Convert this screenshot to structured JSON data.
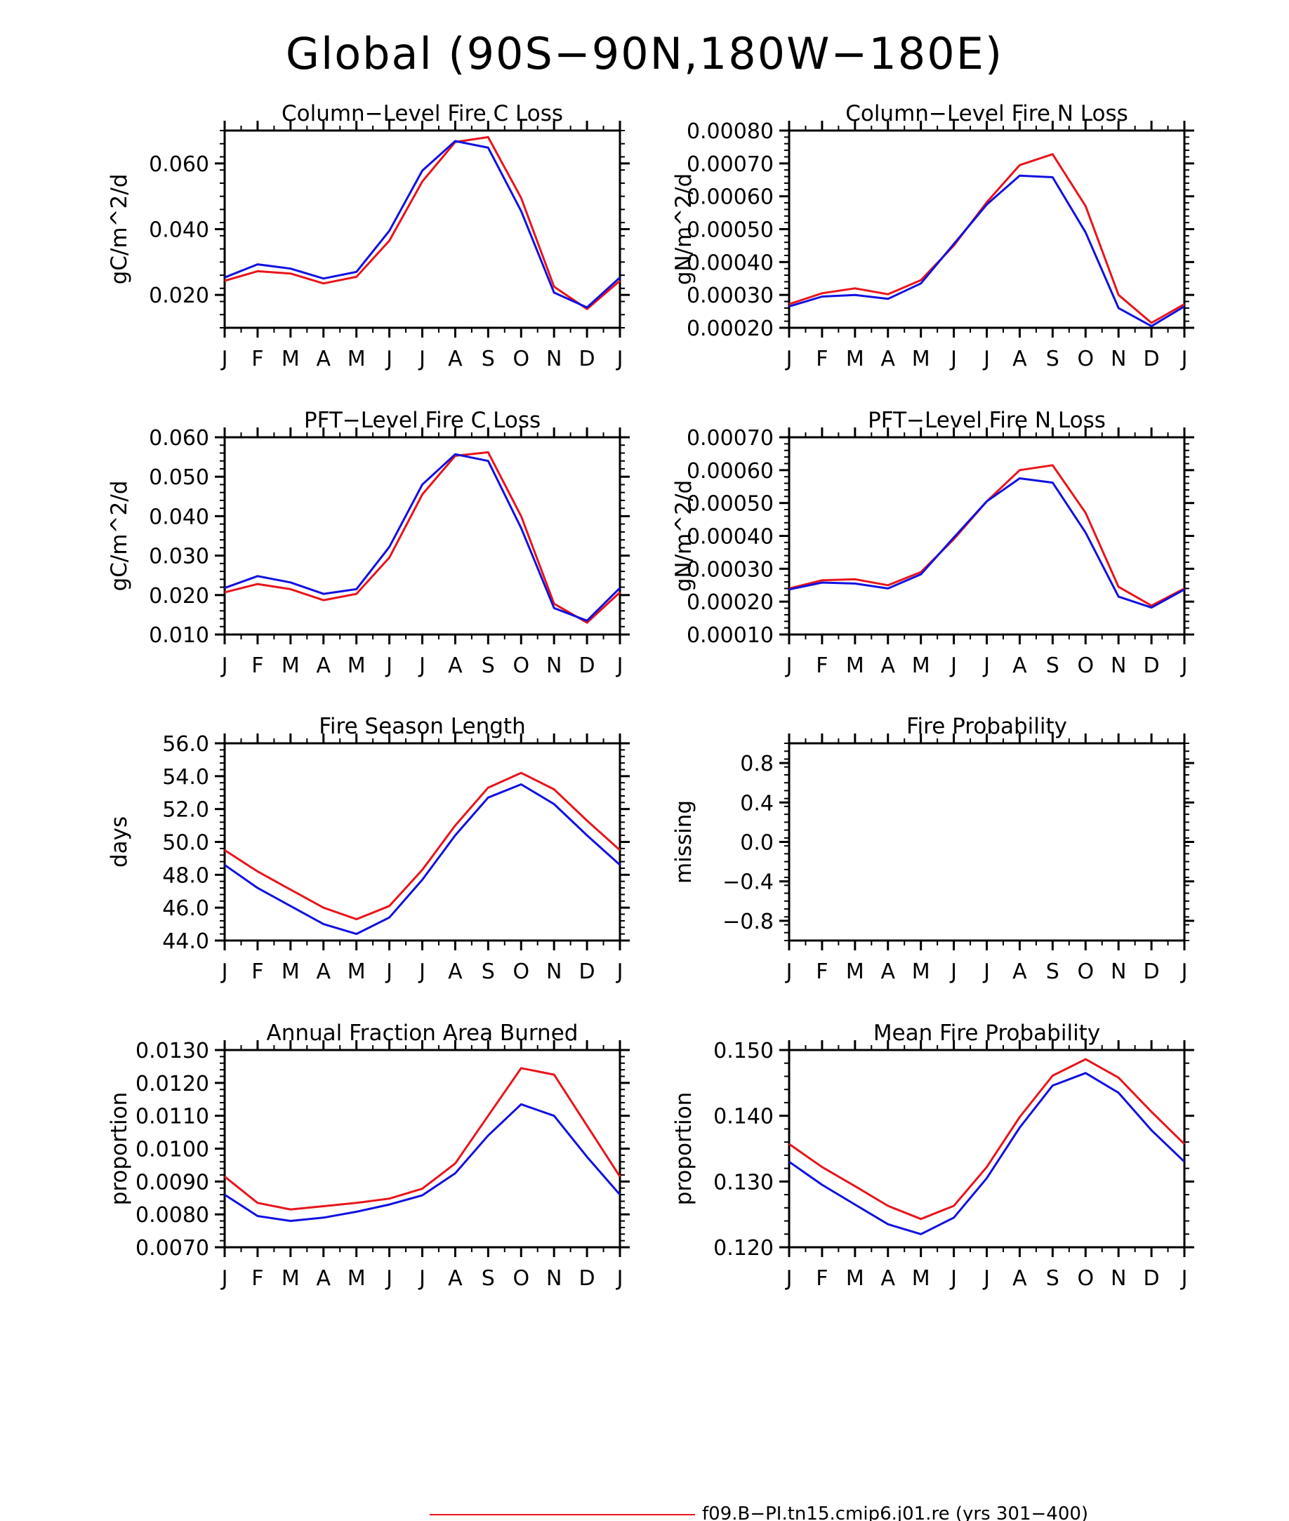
{
  "figure": {
    "title": "Global (90S−90N,180W−180E)",
    "months": [
      "J",
      "F",
      "M",
      "A",
      "M",
      "J",
      "J",
      "A",
      "S",
      "O",
      "N",
      "D",
      "J"
    ]
  },
  "legend": {
    "entries": [
      {
        "label": "f09.B−PI.tn15.cmip6.j01.re (yrs 301−400)",
        "color": "#e8141b"
      }
    ]
  },
  "colors": {
    "red": "#e8141b",
    "blue": "#1010e0",
    "axis": "#000000"
  },
  "chart_data": [
    {
      "type": "line",
      "title": "Column−Level Fire C Loss",
      "ylabel": "gC/m^2/d",
      "ylim": [
        0.01,
        0.07
      ],
      "yticks": [
        0.02,
        0.04,
        0.06
      ],
      "ytick_labels": [
        "0.020",
        "0.040",
        "0.060"
      ],
      "x": [
        "J",
        "F",
        "M",
        "A",
        "M",
        "J",
        "J",
        "A",
        "S",
        "O",
        "N",
        "D",
        "J"
      ],
      "series": [
        {
          "color": "#e8141b",
          "values": [
            0.0243,
            0.0272,
            0.0265,
            0.0235,
            0.0255,
            0.0365,
            0.0545,
            0.0665,
            0.068,
            0.0495,
            0.0225,
            0.0157,
            0.0243
          ]
        },
        {
          "color": "#1010e0",
          "values": [
            0.0253,
            0.0293,
            0.028,
            0.025,
            0.027,
            0.0395,
            0.0578,
            0.0668,
            0.0648,
            0.0455,
            0.0207,
            0.0162,
            0.0253
          ]
        }
      ]
    },
    {
      "type": "line",
      "title": "Column−Level Fire N Loss",
      "ylabel": "gN/m^2/d",
      "ylim": [
        0.0002,
        0.0008
      ],
      "yticks": [
        0.0002,
        0.0003,
        0.0004,
        0.0005,
        0.0006,
        0.0007,
        0.0008
      ],
      "ytick_labels": [
        "0.00020",
        "0.00030",
        "0.00040",
        "0.00050",
        "0.00060",
        "0.00070",
        "0.00080"
      ],
      "x": [
        "J",
        "F",
        "M",
        "A",
        "M",
        "J",
        "J",
        "A",
        "S",
        "O",
        "N",
        "D",
        "J"
      ],
      "series": [
        {
          "color": "#e8141b",
          "values": [
            0.000272,
            0.000305,
            0.00032,
            0.000302,
            0.000345,
            0.00045,
            0.000582,
            0.000695,
            0.000728,
            0.00057,
            0.0003,
            0.000215,
            0.000272
          ]
        },
        {
          "color": "#1010e0",
          "values": [
            0.000265,
            0.000295,
            0.0003,
            0.000288,
            0.000335,
            0.000455,
            0.000575,
            0.000663,
            0.000658,
            0.00049,
            0.00026,
            0.000205,
            0.000265
          ]
        }
      ]
    },
    {
      "type": "line",
      "title": "PFT−Level Fire C Loss",
      "ylabel": "gC/m^2/d",
      "ylim": [
        0.01,
        0.06
      ],
      "yticks": [
        0.01,
        0.02,
        0.03,
        0.04,
        0.05,
        0.06
      ],
      "ytick_labels": [
        "0.010",
        "0.020",
        "0.030",
        "0.040",
        "0.050",
        "0.060"
      ],
      "x": [
        "J",
        "F",
        "M",
        "A",
        "M",
        "J",
        "J",
        "A",
        "S",
        "O",
        "N",
        "D",
        "J"
      ],
      "series": [
        {
          "color": "#e8141b",
          "values": [
            0.0207,
            0.0228,
            0.0215,
            0.0187,
            0.0203,
            0.0295,
            0.0455,
            0.0553,
            0.0562,
            0.04,
            0.0178,
            0.013,
            0.0207
          ]
        },
        {
          "color": "#1010e0",
          "values": [
            0.0218,
            0.0248,
            0.0232,
            0.0203,
            0.0215,
            0.0322,
            0.048,
            0.0557,
            0.054,
            0.037,
            0.0167,
            0.0135,
            0.0218
          ]
        }
      ]
    },
    {
      "type": "line",
      "title": "PFT−Level Fire N Loss",
      "ylabel": "gN/m^2/d",
      "ylim": [
        0.0001,
        0.0007
      ],
      "yticks": [
        0.0001,
        0.0002,
        0.0003,
        0.0004,
        0.0005,
        0.0006,
        0.0007
      ],
      "ytick_labels": [
        "0.00010",
        "0.00020",
        "0.00030",
        "0.00040",
        "0.00050",
        "0.00060",
        "0.00070"
      ],
      "x": [
        "J",
        "F",
        "M",
        "A",
        "M",
        "J",
        "J",
        "A",
        "S",
        "O",
        "N",
        "D",
        "J"
      ],
      "series": [
        {
          "color": "#e8141b",
          "values": [
            0.00024,
            0.000265,
            0.000268,
            0.00025,
            0.00029,
            0.00039,
            0.000505,
            0.0006,
            0.000615,
            0.00047,
            0.000245,
            0.000188,
            0.00024
          ]
        },
        {
          "color": "#1010e0",
          "values": [
            0.000237,
            0.000258,
            0.000255,
            0.00024,
            0.000283,
            0.000395,
            0.000505,
            0.000575,
            0.000562,
            0.00041,
            0.000215,
            0.000182,
            0.000237
          ]
        }
      ]
    },
    {
      "type": "line",
      "title": "Fire Season Length",
      "ylabel": "days",
      "ylim": [
        44.0,
        56.0
      ],
      "yticks": [
        44,
        46,
        48,
        50,
        52,
        54,
        56
      ],
      "ytick_labels": [
        "44.0",
        "46.0",
        "48.0",
        "50.0",
        "52.0",
        "54.0",
        "56.0"
      ],
      "x": [
        "J",
        "F",
        "M",
        "A",
        "M",
        "J",
        "J",
        "A",
        "S",
        "O",
        "N",
        "D",
        "J"
      ],
      "series": [
        {
          "color": "#e8141b",
          "values": [
            49.5,
            48.2,
            47.1,
            46.0,
            45.3,
            46.1,
            48.3,
            51.0,
            53.3,
            54.2,
            53.2,
            51.3,
            49.5
          ]
        },
        {
          "color": "#1010e0",
          "values": [
            48.6,
            47.2,
            46.1,
            45.0,
            44.4,
            45.4,
            47.7,
            50.4,
            52.7,
            53.5,
            52.3,
            50.4,
            48.6
          ]
        }
      ]
    },
    {
      "type": "line",
      "title": "Fire Probability",
      "ylabel": "missing",
      "ylim": [
        -1.0,
        1.0
      ],
      "yticks": [
        -0.8,
        -0.4,
        0.0,
        0.4,
        0.8
      ],
      "ytick_labels": [
        "−0.8",
        "−0.4",
        "0.0",
        "0.4",
        "0.8"
      ],
      "x": [
        "J",
        "F",
        "M",
        "A",
        "M",
        "J",
        "J",
        "A",
        "S",
        "O",
        "N",
        "D",
        "J"
      ],
      "series": []
    },
    {
      "type": "line",
      "title": "Annual Fraction Area Burned",
      "ylabel": "proportion",
      "ylim": [
        0.007,
        0.013
      ],
      "yticks": [
        0.007,
        0.008,
        0.009,
        0.01,
        0.011,
        0.012,
        0.013
      ],
      "ytick_labels": [
        "0.0070",
        "0.0080",
        "0.0090",
        "0.0100",
        "0.0110",
        "0.0120",
        "0.0130"
      ],
      "x": [
        "J",
        "F",
        "M",
        "A",
        "M",
        "J",
        "J",
        "A",
        "S",
        "O",
        "N",
        "D",
        "J"
      ],
      "series": [
        {
          "color": "#e8141b",
          "values": [
            0.00915,
            0.00835,
            0.00815,
            0.00825,
            0.00835,
            0.00848,
            0.00878,
            0.00955,
            0.011,
            0.01245,
            0.01225,
            0.0107,
            0.00915
          ]
        },
        {
          "color": "#1010e0",
          "values": [
            0.0086,
            0.00795,
            0.0078,
            0.0079,
            0.00808,
            0.0083,
            0.00858,
            0.00925,
            0.0104,
            0.01135,
            0.011,
            0.00975,
            0.0086
          ]
        }
      ]
    },
    {
      "type": "line",
      "title": "Mean Fire Probability",
      "ylabel": "proportion",
      "ylim": [
        0.12,
        0.15
      ],
      "yticks": [
        0.12,
        0.13,
        0.14,
        0.15
      ],
      "ytick_labels": [
        "0.120",
        "0.130",
        "0.140",
        "0.150"
      ],
      "x": [
        "J",
        "F",
        "M",
        "A",
        "M",
        "J",
        "J",
        "A",
        "S",
        "O",
        "N",
        "D",
        "J"
      ],
      "series": [
        {
          "color": "#e8141b",
          "values": [
            0.1357,
            0.1322,
            0.1293,
            0.1263,
            0.1243,
            0.1263,
            0.1322,
            0.1398,
            0.1461,
            0.1486,
            0.1458,
            0.1406,
            0.1357
          ]
        },
        {
          "color": "#1010e0",
          "values": [
            0.133,
            0.1295,
            0.1265,
            0.1235,
            0.122,
            0.1245,
            0.1305,
            0.1382,
            0.1446,
            0.1465,
            0.1435,
            0.1378,
            0.133
          ]
        }
      ]
    }
  ]
}
